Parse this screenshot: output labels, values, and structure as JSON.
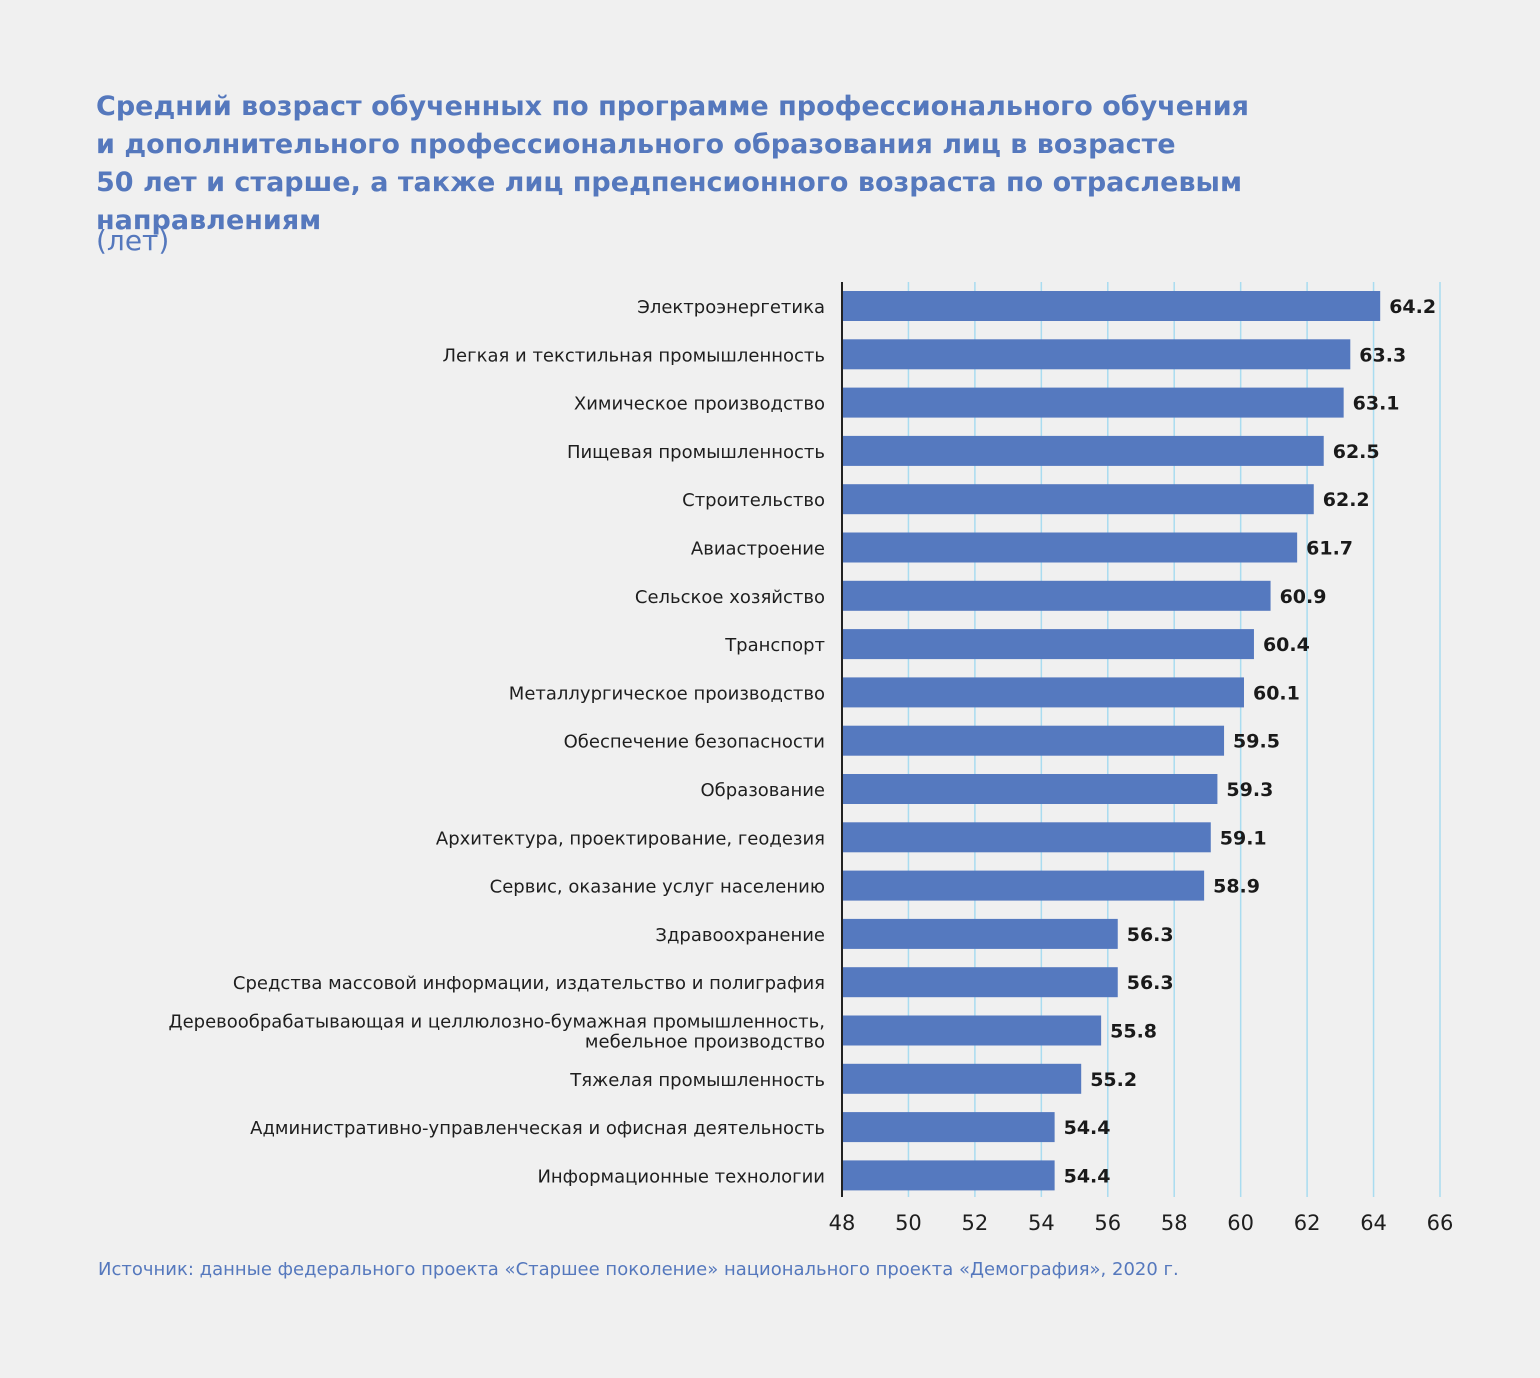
{
  "chart_data": {
    "type": "bar",
    "orientation": "horizontal",
    "title_lines": [
      "Средний возраст обученных по программе профессионального обучения",
      "и дополнительного профессионального образования лиц в возрасте",
      "50 лет и старше, а также лиц предпенсионного возраста по отраслевым",
      "направлениям"
    ],
    "subtitle": "(лет)",
    "categories": [
      [
        "Электроэнергетика"
      ],
      [
        "Легкая и текстильная промышленность"
      ],
      [
        "Химическое производство"
      ],
      [
        "Пищевая промышленность"
      ],
      [
        "Строительство"
      ],
      [
        "Авиастроение"
      ],
      [
        "Сельское хозяйство"
      ],
      [
        "Транспорт"
      ],
      [
        "Металлургическое производство"
      ],
      [
        "Обеспечение безопасности"
      ],
      [
        "Образование"
      ],
      [
        "Архитектура, проектирование, геодезия"
      ],
      [
        "Сервис, оказание услуг населению"
      ],
      [
        "Здравоохранение"
      ],
      [
        "Средства массовой информации, издательство и полиграфия"
      ],
      [
        "Деревообрабатывающая и целлюлозно-бумажная промышленность,",
        "мебельное производство"
      ],
      [
        "Тяжелая промышленность"
      ],
      [
        "Административно-управленческая и офисная деятельность"
      ],
      [
        "Информационные технологии"
      ]
    ],
    "values": [
      64.2,
      63.3,
      63.1,
      62.5,
      62.2,
      61.7,
      60.9,
      60.4,
      60.1,
      59.5,
      59.3,
      59.1,
      58.9,
      56.3,
      56.3,
      55.8,
      55.2,
      54.4,
      54.4
    ],
    "value_labels": [
      "64.2",
      "63.3",
      "63.1",
      "62.5",
      "62.2",
      "61.7",
      "60.9",
      "60.4",
      "60.1",
      "59.5",
      "59.3",
      "59.1",
      "58.9",
      "56.3",
      "56.3",
      "55.8",
      "55.2",
      "54.4",
      "54.4"
    ],
    "xlim": [
      48,
      66
    ],
    "xticks": [
      48,
      50,
      52,
      54,
      56,
      58,
      60,
      62,
      64,
      66
    ],
    "xtick_labels": [
      "48",
      "50",
      "52",
      "54",
      "56",
      "58",
      "60",
      "62",
      "64",
      "66"
    ],
    "grid": true,
    "legend": "none"
  },
  "source": "Источник: данные федерального проекта «Старшее поколение» национального проекта «Демография», 2020 г.",
  "colors": {
    "bar": "#5579bf",
    "title": "#5578bd",
    "grid": "#a9dcf0",
    "axis": "#222222",
    "value_label": "#1a1a1a",
    "category_label": "#1e1e1e",
    "background": "#f0f0f0"
  }
}
